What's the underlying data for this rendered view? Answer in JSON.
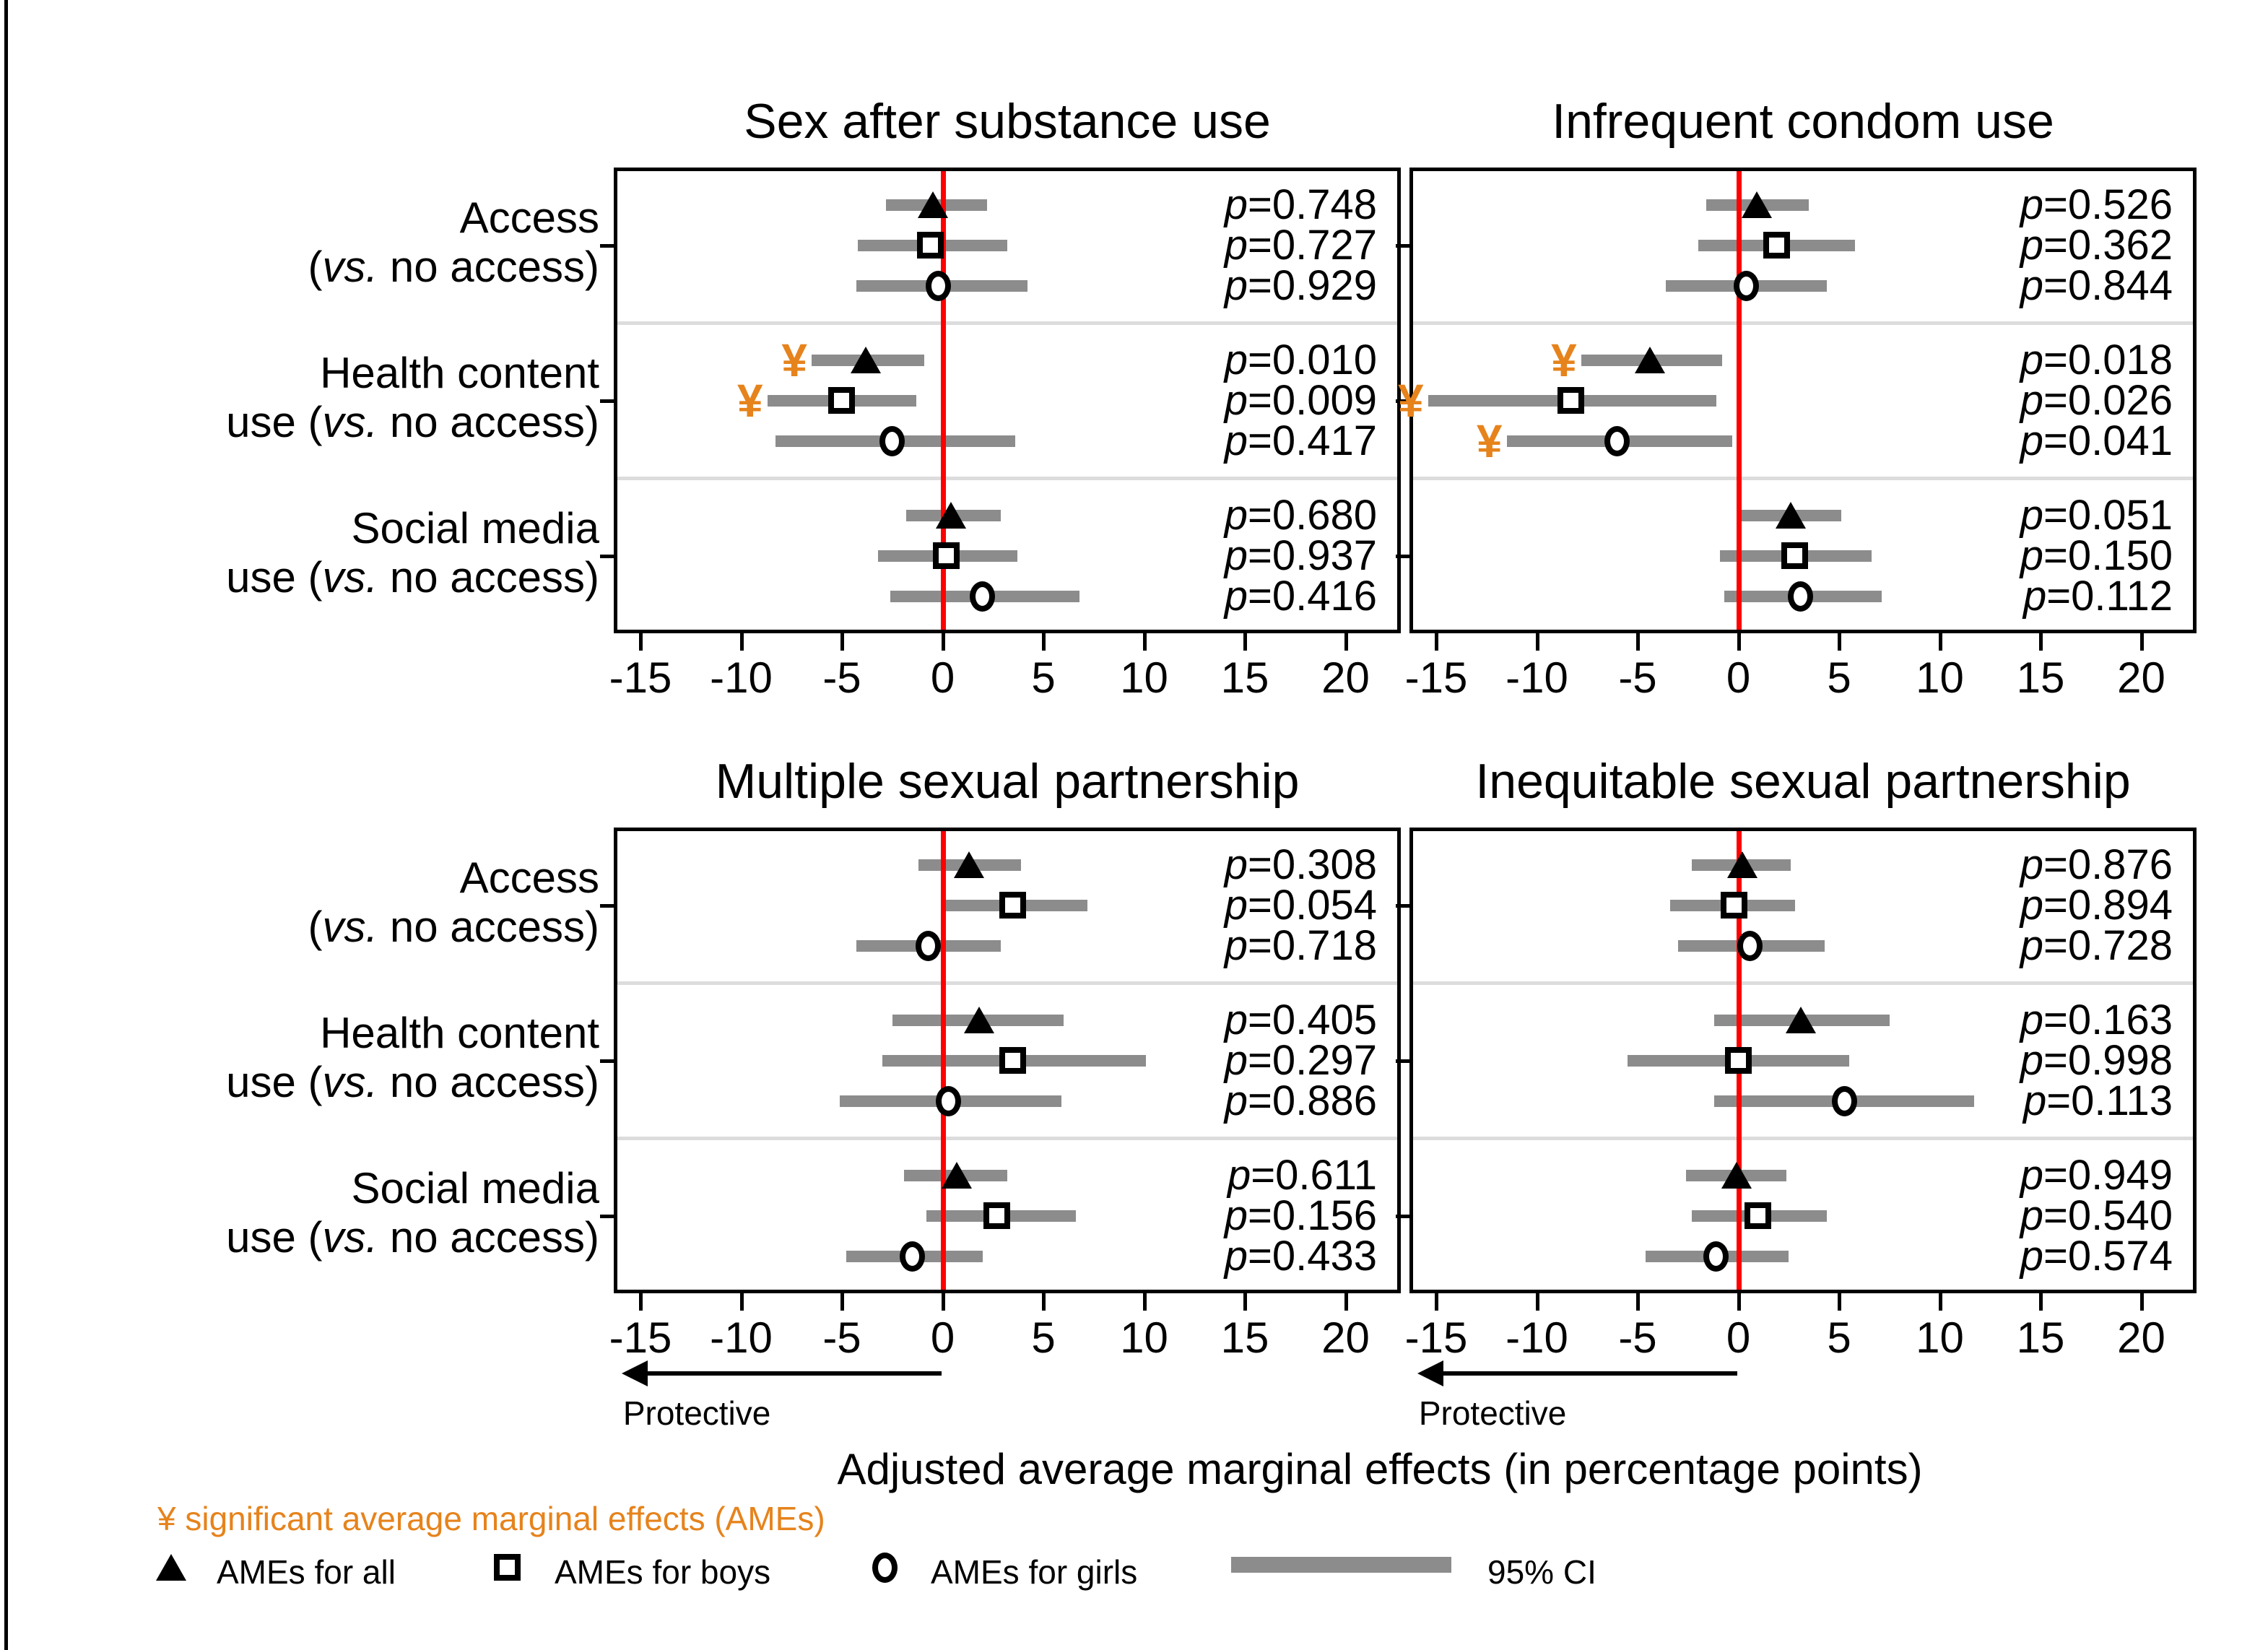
{
  "figure": {
    "xlabel": "Adjusted average marginal effects (in percentage points)",
    "protective_label": "Protective",
    "legend": {
      "significant": "¥ significant average marginal effects (AMEs)",
      "all": "AMEs for all",
      "boys": "AMEs for boys",
      "girls": "AMEs for girls",
      "ci": "95% CI"
    },
    "colors": {
      "accent_orange": "#E6831C",
      "ci_gray": "#8C8C8C",
      "zero_line_red": "#FF0000",
      "divider_gray": "#DCDCDC"
    }
  },
  "chart_data": {
    "type": "forest",
    "x_ticks": [
      -15,
      -10,
      -5,
      0,
      5,
      10,
      15,
      20
    ],
    "x_range": [
      -16.3,
      22.8
    ],
    "zero_line": 0,
    "grid": false,
    "legend_symbols": {
      "all": "filled-triangle",
      "boys": "open-square",
      "girls": "open-circle"
    },
    "groups": [
      {
        "line1": "Access",
        "line2": "(vs. no access)"
      },
      {
        "line1": "Health content",
        "line2": "use (vs. no access)"
      },
      {
        "line1": "Social media",
        "line2": "use (vs. no access)"
      }
    ],
    "panels": [
      {
        "title": "Sex after substance use",
        "rows": [
          {
            "group": 0,
            "series": "all",
            "est": -0.5,
            "lo": -2.8,
            "hi": 2.2,
            "p": "p=0.748",
            "sig": false
          },
          {
            "group": 0,
            "series": "boys",
            "est": -0.6,
            "lo": -4.2,
            "hi": 3.2,
            "p": "p=0.727",
            "sig": false
          },
          {
            "group": 0,
            "series": "girls",
            "est": -0.2,
            "lo": -4.3,
            "hi": 4.2,
            "p": "p=0.929",
            "sig": false
          },
          {
            "group": 1,
            "series": "all",
            "est": -3.8,
            "lo": -6.5,
            "hi": -0.9,
            "p": "p=0.010",
            "sig": true
          },
          {
            "group": 1,
            "series": "boys",
            "est": -5.0,
            "lo": -8.7,
            "hi": -1.3,
            "p": "p=0.009",
            "sig": true
          },
          {
            "group": 1,
            "series": "girls",
            "est": -2.5,
            "lo": -8.3,
            "hi": 3.6,
            "p": "p=0.417",
            "sig": false
          },
          {
            "group": 2,
            "series": "all",
            "est": 0.4,
            "lo": -1.8,
            "hi": 2.9,
            "p": "p=0.680",
            "sig": false
          },
          {
            "group": 2,
            "series": "boys",
            "est": 0.2,
            "lo": -3.2,
            "hi": 3.7,
            "p": "p=0.937",
            "sig": false
          },
          {
            "group": 2,
            "series": "girls",
            "est": 2.0,
            "lo": -2.6,
            "hi": 6.8,
            "p": "p=0.416",
            "sig": false
          }
        ]
      },
      {
        "title": "Infrequent condom use",
        "rows": [
          {
            "group": 0,
            "series": "all",
            "est": 0.9,
            "lo": -1.6,
            "hi": 3.5,
            "p": "p=0.526",
            "sig": false
          },
          {
            "group": 0,
            "series": "boys",
            "est": 1.9,
            "lo": -2.0,
            "hi": 5.8,
            "p": "p=0.362",
            "sig": false
          },
          {
            "group": 0,
            "series": "girls",
            "est": 0.4,
            "lo": -3.6,
            "hi": 4.4,
            "p": "p=0.844",
            "sig": false
          },
          {
            "group": 1,
            "series": "all",
            "est": -4.4,
            "lo": -7.8,
            "hi": -0.8,
            "p": "p=0.018",
            "sig": true
          },
          {
            "group": 1,
            "series": "boys",
            "est": -8.3,
            "lo": -15.4,
            "hi": -1.1,
            "p": "p=0.026",
            "sig": true
          },
          {
            "group": 1,
            "series": "girls",
            "est": -6.0,
            "lo": -11.5,
            "hi": -0.3,
            "p": "p=0.041",
            "sig": true
          },
          {
            "group": 2,
            "series": "all",
            "est": 2.6,
            "lo": 0.1,
            "hi": 5.1,
            "p": "p=0.051",
            "sig": false
          },
          {
            "group": 2,
            "series": "boys",
            "est": 2.8,
            "lo": -0.9,
            "hi": 6.6,
            "p": "p=0.150",
            "sig": false
          },
          {
            "group": 2,
            "series": "girls",
            "est": 3.1,
            "lo": -0.7,
            "hi": 7.1,
            "p": "p=0.112",
            "sig": false
          }
        ]
      },
      {
        "title": "Multiple sexual partnership",
        "rows": [
          {
            "group": 0,
            "series": "all",
            "est": 1.3,
            "lo": -1.2,
            "hi": 3.9,
            "p": "p=0.308",
            "sig": false
          },
          {
            "group": 0,
            "series": "boys",
            "est": 3.5,
            "lo": 0.0,
            "hi": 7.2,
            "p": "p=0.054",
            "sig": false
          },
          {
            "group": 0,
            "series": "girls",
            "est": -0.7,
            "lo": -4.3,
            "hi": 2.9,
            "p": "p=0.718",
            "sig": false
          },
          {
            "group": 1,
            "series": "all",
            "est": 1.8,
            "lo": -2.5,
            "hi": 6.0,
            "p": "p=0.405",
            "sig": false
          },
          {
            "group": 1,
            "series": "boys",
            "est": 3.5,
            "lo": -3.0,
            "hi": 10.1,
            "p": "p=0.297",
            "sig": false
          },
          {
            "group": 1,
            "series": "girls",
            "est": 0.3,
            "lo": -5.1,
            "hi": 5.9,
            "p": "p=0.886",
            "sig": false
          },
          {
            "group": 2,
            "series": "all",
            "est": 0.7,
            "lo": -1.9,
            "hi": 3.2,
            "p": "p=0.611",
            "sig": false
          },
          {
            "group": 2,
            "series": "boys",
            "est": 2.7,
            "lo": -0.8,
            "hi": 6.6,
            "p": "p=0.156",
            "sig": false
          },
          {
            "group": 2,
            "series": "girls",
            "est": -1.5,
            "lo": -4.8,
            "hi": 2.0,
            "p": "p=0.433",
            "sig": false
          }
        ]
      },
      {
        "title": "Inequitable sexual partnership",
        "rows": [
          {
            "group": 0,
            "series": "all",
            "est": 0.2,
            "lo": -2.3,
            "hi": 2.6,
            "p": "p=0.876",
            "sig": false
          },
          {
            "group": 0,
            "series": "boys",
            "est": -0.2,
            "lo": -3.4,
            "hi": 2.8,
            "p": "p=0.894",
            "sig": false
          },
          {
            "group": 0,
            "series": "girls",
            "est": 0.6,
            "lo": -3.0,
            "hi": 4.3,
            "p": "p=0.728",
            "sig": false
          },
          {
            "group": 1,
            "series": "all",
            "est": 3.1,
            "lo": -1.2,
            "hi": 7.5,
            "p": "p=0.163",
            "sig": false
          },
          {
            "group": 1,
            "series": "boys",
            "est": 0.0,
            "lo": -5.5,
            "hi": 5.5,
            "p": "p=0.998",
            "sig": false
          },
          {
            "group": 1,
            "series": "girls",
            "est": 5.3,
            "lo": -1.2,
            "hi": 11.7,
            "p": "p=0.113",
            "sig": false
          },
          {
            "group": 2,
            "series": "all",
            "est": -0.1,
            "lo": -2.6,
            "hi": 2.4,
            "p": "p=0.949",
            "sig": false
          },
          {
            "group": 2,
            "series": "boys",
            "est": 1.0,
            "lo": -2.3,
            "hi": 4.4,
            "p": "p=0.540",
            "sig": false
          },
          {
            "group": 2,
            "series": "girls",
            "est": -1.1,
            "lo": -4.6,
            "hi": 2.5,
            "p": "p=0.574",
            "sig": false
          }
        ]
      }
    ]
  }
}
